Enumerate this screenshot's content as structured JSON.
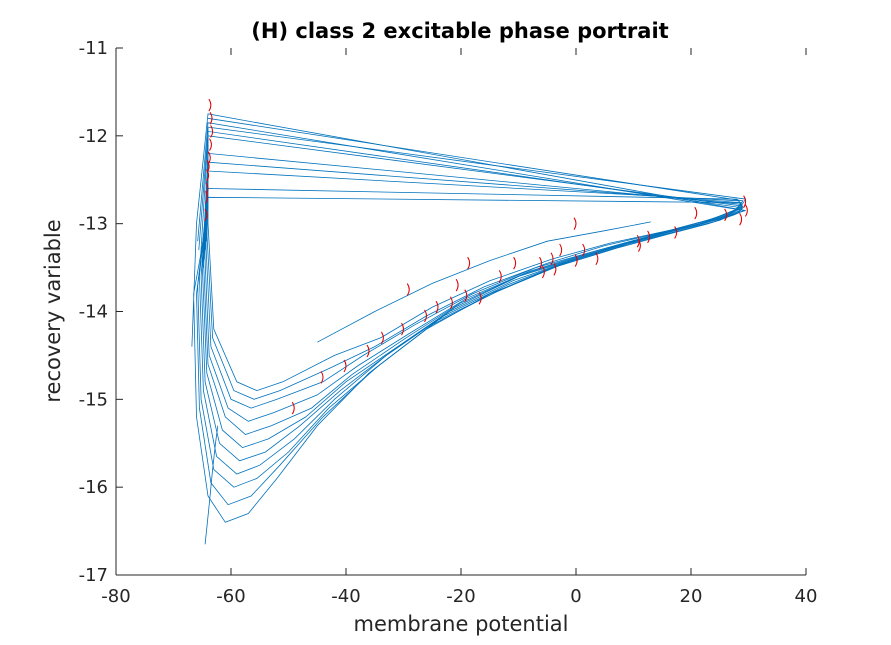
{
  "chart_data": {
    "type": "line",
    "title": "(H) class 2 excitable phase portrait",
    "xlabel": "membrane potential",
    "ylabel": "recovery variable",
    "xlim": [
      -80,
      40
    ],
    "ylim": [
      -17,
      -11
    ],
    "xticks": [
      -80,
      -60,
      -40,
      -20,
      0,
      20,
      40
    ],
    "yticks": [
      -17,
      -16,
      -15,
      -14,
      -13,
      -12,
      -11
    ],
    "xtick_labels": [
      "-80",
      "-60",
      "-40",
      "-20",
      "0",
      "20",
      "40"
    ],
    "ytick_labels": [
      "-17",
      "-16",
      "-15",
      "-14",
      "-13",
      "-12",
      "-11"
    ],
    "grid": false,
    "legend": "none",
    "series_color": "#0072BD",
    "arrow_color": "#E00000",
    "series": [
      {
        "x": [
          -64.5,
          -63.8,
          -63.2,
          -62.7,
          -62.3
        ],
        "y": [
          -16.65,
          -16.2,
          -15.8,
          -15.5,
          -15.3
        ]
      },
      {
        "x": [
          -64,
          -66.5,
          -66,
          -64,
          -61,
          -57,
          -52,
          -45,
          -36,
          -26,
          -15,
          -4,
          6,
          15,
          22,
          27,
          29.5,
          -64,
          -66,
          -66.8
        ],
        "y": [
          -12.9,
          -13.8,
          -15.2,
          -16.1,
          -16.4,
          -16.3,
          -15.9,
          -15.3,
          -14.7,
          -14.2,
          -13.8,
          -13.5,
          -13.3,
          -13.1,
          -13.0,
          -12.9,
          -12.85,
          -11.75,
          -13.0,
          -14.4
        ]
      },
      {
        "x": [
          -64,
          -66,
          -65.5,
          -63.5,
          -60.5,
          -56.5,
          -51.5,
          -44,
          -35,
          -25,
          -14,
          -3,
          7,
          16,
          23,
          27.5,
          29.2,
          -64,
          -65.8
        ],
        "y": [
          -12.8,
          -13.8,
          -15.1,
          -15.95,
          -16.2,
          -16.1,
          -15.75,
          -15.2,
          -14.65,
          -14.15,
          -13.78,
          -13.48,
          -13.28,
          -13.12,
          -13.0,
          -12.9,
          -12.85,
          -11.85,
          -13.2
        ]
      },
      {
        "x": [
          -64,
          -65.8,
          -65.2,
          -63,
          -59.5,
          -55.5,
          -50,
          -43,
          -34,
          -24,
          -13,
          -2,
          8,
          17,
          24,
          28,
          29,
          -64,
          -65.6
        ],
        "y": [
          -12.7,
          -13.7,
          -15.0,
          -15.8,
          -16.0,
          -15.9,
          -15.6,
          -15.1,
          -14.6,
          -14.1,
          -13.75,
          -13.45,
          -13.25,
          -13.1,
          -12.98,
          -12.88,
          -12.82,
          -11.95,
          -13.3
        ]
      },
      {
        "x": [
          -64,
          -65.5,
          -64.8,
          -62.5,
          -59,
          -55,
          -49,
          -42,
          -33,
          -23,
          -12,
          -1,
          9,
          18,
          25,
          28.5,
          29,
          -64,
          -65.3
        ],
        "y": [
          -12.6,
          -13.6,
          -14.9,
          -15.65,
          -15.85,
          -15.75,
          -15.45,
          -15.0,
          -14.5,
          -14.05,
          -13.7,
          -13.42,
          -13.22,
          -13.08,
          -12.96,
          -12.86,
          -12.8,
          -12.0,
          -13.4
        ]
      },
      {
        "x": [
          -64,
          -65.2,
          -64.5,
          -62,
          -58.5,
          -54,
          -48,
          -41,
          -32,
          -22,
          -11,
          0,
          10,
          19,
          25.5,
          28.8,
          28.8,
          -64,
          -65
        ],
        "y": [
          -12.5,
          -13.6,
          -14.8,
          -15.5,
          -15.7,
          -15.6,
          -15.3,
          -14.9,
          -14.45,
          -14.0,
          -13.65,
          -13.4,
          -13.2,
          -13.05,
          -12.94,
          -12.84,
          -12.78,
          -12.2,
          -13.5
        ]
      },
      {
        "x": [
          -64,
          -65,
          -64.2,
          -61.5,
          -58,
          -53.5,
          -47,
          -40,
          -31,
          -21,
          -10,
          1,
          11,
          20,
          26,
          28.8,
          28.5,
          -64,
          -64.8
        ],
        "y": [
          -12.4,
          -13.5,
          -14.7,
          -15.35,
          -15.55,
          -15.45,
          -15.2,
          -14.8,
          -14.4,
          -13.95,
          -13.6,
          -13.38,
          -13.18,
          -13.03,
          -12.92,
          -12.82,
          -12.76,
          -12.3,
          -13.5
        ]
      },
      {
        "x": [
          -64,
          -64.8,
          -64,
          -61,
          -57.5,
          -53,
          -46,
          -39,
          -30,
          -20,
          -9,
          2,
          12,
          21,
          26.5,
          28.8,
          28.3,
          -64,
          -64.6
        ],
        "y": [
          -12.3,
          -13.4,
          -14.6,
          -15.2,
          -15.4,
          -15.3,
          -15.1,
          -14.72,
          -14.32,
          -13.9,
          -13.57,
          -13.35,
          -13.16,
          -13.02,
          -12.9,
          -12.8,
          -12.74,
          -12.4,
          -13.4
        ]
      },
      {
        "x": [
          -64,
          -64.6,
          -63.8,
          -60.5,
          -57,
          -52.5,
          -45,
          -38,
          -29,
          -19,
          -8,
          3,
          13,
          21.5,
          27,
          28.8,
          28,
          -64,
          -64.4
        ],
        "y": [
          -12.2,
          -13.3,
          -14.5,
          -15.1,
          -15.25,
          -15.15,
          -14.95,
          -14.62,
          -14.25,
          -13.85,
          -13.54,
          -13.32,
          -13.14,
          -13.0,
          -12.88,
          -12.78,
          -12.72,
          -12.6,
          -13.3
        ]
      },
      {
        "x": [
          -64,
          -64.4,
          -63.5,
          -60,
          -56.5,
          -52,
          -44,
          -37,
          -28,
          -18,
          -7,
          4,
          14,
          22,
          27.5,
          28.8,
          -64,
          -64.2
        ],
        "y": [
          -12.1,
          -13.2,
          -14.4,
          -15.0,
          -15.1,
          -15.0,
          -14.8,
          -14.5,
          -14.15,
          -13.8,
          -13.5,
          -13.3,
          -13.12,
          -12.98,
          -12.86,
          -12.76,
          -12.7,
          -13.2
        ]
      },
      {
        "x": [
          -64,
          -64.2,
          -63.2,
          -59.5,
          -56,
          -51.5,
          -43,
          -35,
          -26,
          -16,
          -5,
          5,
          15,
          23,
          28,
          29,
          -64
        ],
        "y": [
          -12.0,
          -13.1,
          -14.3,
          -14.9,
          -15.0,
          -14.9,
          -14.65,
          -14.4,
          -14.05,
          -13.72,
          -13.45,
          -13.25,
          -13.1,
          -12.96,
          -12.84,
          -12.74,
          -11.8
        ]
      },
      {
        "x": [
          -64,
          -64,
          -63,
          -59,
          -55.5,
          -51,
          -42,
          -34,
          -25,
          -15,
          -4,
          6,
          16,
          24,
          28.5,
          29.5,
          -64
        ],
        "y": [
          -11.9,
          -13.0,
          -14.2,
          -14.8,
          -14.9,
          -14.8,
          -14.5,
          -14.3,
          -13.95,
          -13.65,
          -13.4,
          -13.22,
          -13.08,
          -12.94,
          -12.82,
          -12.72,
          -11.9
        ]
      },
      {
        "x": [
          -45,
          -35,
          -25,
          -15,
          -5,
          5,
          13
        ],
        "y": [
          -14.35,
          -14.0,
          -13.68,
          -13.42,
          -13.2,
          -13.08,
          -12.98
        ]
      }
    ],
    "arrows": [
      {
        "x": -63.5,
        "y": -11.65
      },
      {
        "x": -63.3,
        "y": -11.8
      },
      {
        "x": -63.2,
        "y": -11.95
      },
      {
        "x": -63.4,
        "y": -12.1
      },
      {
        "x": -63.6,
        "y": -12.25
      },
      {
        "x": -63.8,
        "y": -12.35
      },
      {
        "x": -63.9,
        "y": -12.45
      },
      {
        "x": -64.0,
        "y": -12.6
      },
      {
        "x": -64.1,
        "y": -12.7
      },
      {
        "x": -64.2,
        "y": -12.9
      },
      {
        "x": 29.5,
        "y": -12.75
      },
      {
        "x": 29.8,
        "y": -12.85
      },
      {
        "x": 28.8,
        "y": -12.95
      },
      {
        "x": 26.2,
        "y": -12.9
      },
      {
        "x": 21.0,
        "y": -12.88
      },
      {
        "x": 17.5,
        "y": -13.1
      },
      {
        "x": 12.8,
        "y": -13.15
      },
      {
        "x": 11.0,
        "y": -13.2
      },
      {
        "x": 11.2,
        "y": -13.25
      },
      {
        "x": 3.8,
        "y": -13.4
      },
      {
        "x": 1.5,
        "y": -13.3
      },
      {
        "x": 0.2,
        "y": -13.42
      },
      {
        "x": 0.0,
        "y": -13.0
      },
      {
        "x": -2.5,
        "y": -13.3
      },
      {
        "x": -3.5,
        "y": -13.52
      },
      {
        "x": -4.0,
        "y": -13.4
      },
      {
        "x": -5.5,
        "y": -13.55
      },
      {
        "x": -6.0,
        "y": -13.45
      },
      {
        "x": -10.5,
        "y": -13.45
      },
      {
        "x": -13.0,
        "y": -13.6
      },
      {
        "x": -16.5,
        "y": -13.85
      },
      {
        "x": -18.5,
        "y": -13.45
      },
      {
        "x": -19.0,
        "y": -13.82
      },
      {
        "x": -20.5,
        "y": -13.7
      },
      {
        "x": -21.5,
        "y": -13.9
      },
      {
        "x": -24.0,
        "y": -13.95
      },
      {
        "x": -26.0,
        "y": -14.05
      },
      {
        "x": -29.0,
        "y": -13.75
      },
      {
        "x": -30.0,
        "y": -14.2
      },
      {
        "x": -33.5,
        "y": -14.3
      },
      {
        "x": -36.0,
        "y": -14.45
      },
      {
        "x": -40.0,
        "y": -14.62
      },
      {
        "x": -44.0,
        "y": -14.75
      },
      {
        "x": -49.0,
        "y": -15.1
      }
    ]
  }
}
